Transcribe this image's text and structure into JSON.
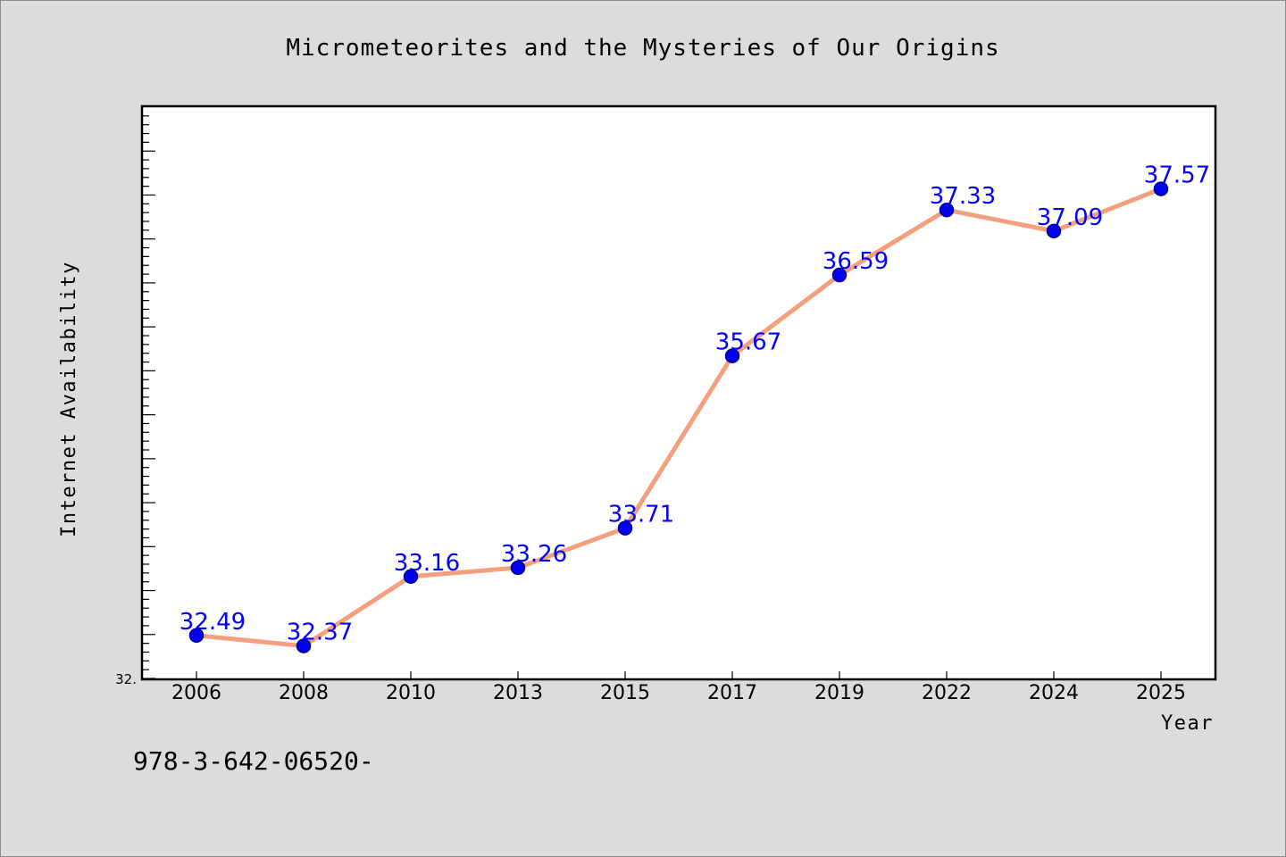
{
  "chart_data": {
    "type": "line",
    "title": "Micrometeorites and the Mysteries of Our Origins",
    "xlabel": "Year",
    "ylabel": "Internet Availability",
    "categories": [
      "2006",
      "2008",
      "2010",
      "2013",
      "2015",
      "2017",
      "2019",
      "2022",
      "2024",
      "2025"
    ],
    "series": [
      {
        "values": [
          32.49,
          32.37,
          33.16,
          33.26,
          33.71,
          35.67,
          36.59,
          37.33,
          37.09,
          37.57
        ]
      }
    ],
    "data_labels": [
      "32.49",
      "32.37",
      "33.16",
      "33.26",
      "33.71",
      "35.67",
      "36.59",
      "37.33",
      "37.09",
      "37.57"
    ],
    "ylim": [
      32.0,
      38.5
    ],
    "y_tick_label": "32.",
    "grid": false,
    "legend": "none",
    "colors": {
      "line": "#f4a07e",
      "marker": "#0000ee",
      "marker_edge": "#00008b",
      "label": "#0000ff",
      "plot_background": "#ffffff",
      "figure_background": "#dcdcdc"
    }
  },
  "footnote": "978-3-642-06520-"
}
